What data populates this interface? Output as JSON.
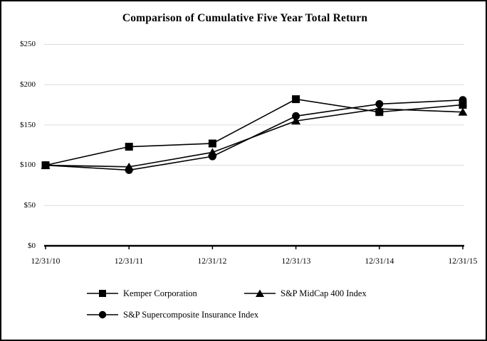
{
  "figure": {
    "title": "Comparison of Cumulative Five Year Total Return"
  },
  "chart_data": {
    "type": "line",
    "title": "Comparison of Cumulative Five Year Total Return",
    "categories": [
      "12/31/10",
      "12/31/11",
      "12/31/12",
      "12/31/13",
      "12/31/14",
      "12/31/15"
    ],
    "series": [
      {
        "name": "Kemper Corporation",
        "marker": "square",
        "values": [
          100,
          123,
          127,
          182,
          166,
          175
        ]
      },
      {
        "name": "S&P MidCap 400 Index",
        "marker": "triangle",
        "values": [
          100,
          98,
          116,
          155,
          170,
          166
        ]
      },
      {
        "name": "S&P Supercomposite Insurance Index",
        "marker": "circle",
        "values": [
          100,
          94,
          111,
          161,
          176,
          181
        ]
      }
    ],
    "y_tick_labels": [
      "$0",
      "$50",
      "$100",
      "$150",
      "$200",
      "$250"
    ],
    "ylim": [
      0,
      250
    ],
    "y_tick_step": 50,
    "xlabel": "",
    "ylabel": "",
    "grid": true,
    "legend_position": "bottom",
    "line_color": "#000000",
    "grid_color": "#dcdcdc"
  }
}
